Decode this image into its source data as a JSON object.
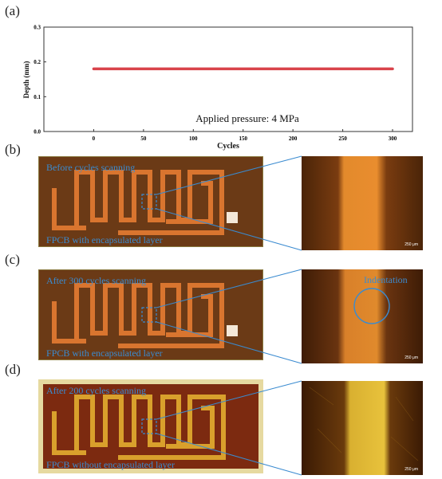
{
  "panels": {
    "a": "(a)",
    "b": "(b)",
    "c": "(c)",
    "d": "(d)"
  },
  "chart_data": {
    "type": "line",
    "x": [
      0,
      300
    ],
    "series": [
      {
        "values": [
          0.18,
          0.18
        ]
      }
    ],
    "xlabel": "Cycles",
    "ylabel": "Depth (mm)",
    "xlim": [
      -50,
      300
    ],
    "ylim": [
      0.0,
      0.3
    ],
    "xticks": [
      "0",
      "50",
      "100",
      "150",
      "200",
      "250",
      "300"
    ],
    "yticks": [
      "0.0",
      "0.1",
      "0.2",
      "0.3"
    ],
    "annotation": "Applied pressure: 4 MPa",
    "grid": false,
    "line_color": "#d9434b"
  },
  "photos": {
    "b": {
      "top_text": "Before cycles scanning",
      "bottom_text": "FPCB with encapsulated layer",
      "scale": "250 μm"
    },
    "c": {
      "top_text": "After 300 cycles scanning",
      "bottom_text": "FPCB with encapsulated layer",
      "scale": "250 μm",
      "indentation": "Indentation"
    },
    "d": {
      "top_text": "After 200 cycles scanning",
      "bottom_text": "FPCB without encapsulated layer",
      "scale": "250 μm"
    }
  },
  "colors": {
    "board_encapsulated": "#6b3a16",
    "trace_encapsulated": "#d9752f",
    "board_bare": "#7c2a10",
    "trace_bare": "#d9a02c",
    "annotation_blue": "#3a8bd0"
  }
}
